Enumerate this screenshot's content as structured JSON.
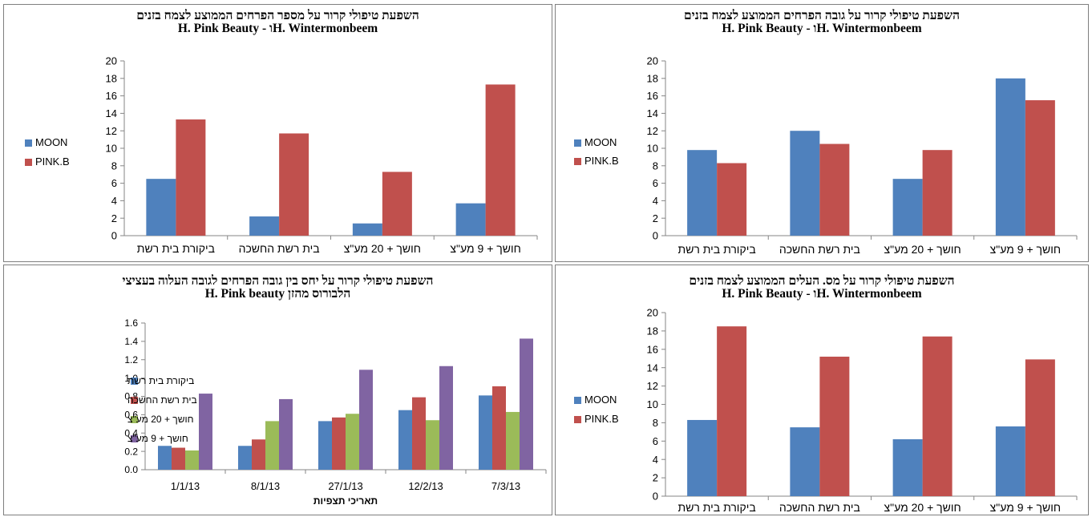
{
  "colors": {
    "moon": "#4f81bd",
    "pink": "#c0504d",
    "green": "#9bbb59",
    "purple": "#8064a2",
    "axis": "#868686"
  },
  "chart_data": [
    {
      "id": "c1",
      "type": "bar",
      "title_line1": "השפעת טיפולי קרור על מספר הפרחים הממוצע לצמח בזנים",
      "title_line2": "H. Pink Beauty - וH. Wintermonbeem",
      "categories": [
        "ביקורת בית רשת",
        "בית רשת החשכה",
        "חושך + 20 מע\"צ",
        "חושך + 9 מע\"צ"
      ],
      "series": [
        {
          "name": "MOON",
          "color_key": "moon",
          "values": [
            6.5,
            2.2,
            1.4,
            3.7
          ]
        },
        {
          "name": "PINK.B",
          "color_key": "pink",
          "values": [
            13.3,
            11.7,
            7.3,
            17.3
          ]
        }
      ],
      "ylim": [
        0,
        20
      ],
      "ystep": 2,
      "decimals": 0,
      "legend_position": "left",
      "grid": false
    },
    {
      "id": "c2",
      "type": "bar",
      "title_line1": "השפעת טיפולי קרור על גובה הפרחים הממוצע לצמח בזנים",
      "title_line2": "H. Pink Beauty - וH. Wintermonbeem",
      "categories": [
        "ביקורת בית רשת",
        "בית רשת החשכה",
        "חושך + 20 מע\"צ",
        "חושך + 9 מע\"צ"
      ],
      "series": [
        {
          "name": "MOON",
          "color_key": "moon",
          "values": [
            9.8,
            12.0,
            6.5,
            18.0
          ]
        },
        {
          "name": "PINK.B",
          "color_key": "pink",
          "values": [
            8.3,
            10.5,
            9.8,
            15.5
          ]
        }
      ],
      "ylim": [
        0,
        20
      ],
      "ystep": 2,
      "decimals": 0,
      "legend_position": "left",
      "grid": false
    },
    {
      "id": "c3",
      "type": "bar",
      "title_line1": "השפעת טיפולי קרור על יחס בין גובה הפרחים לגובה העלוה בעציצי",
      "title_line2": "הלבורוס מהזן H. Pink beauty",
      "categories": [
        "1/1/13",
        "8/1/13",
        "27/1/13",
        "12/2/13",
        "7/3/13"
      ],
      "xlabel": "תאריכי תצפיות",
      "series": [
        {
          "name": "ביקורת בית רשת",
          "color_key": "moon",
          "values": [
            0.26,
            0.26,
            0.53,
            0.65,
            0.81
          ]
        },
        {
          "name": "בית רשת החשכה",
          "color_key": "pink",
          "values": [
            0.24,
            0.33,
            0.57,
            0.79,
            0.91
          ]
        },
        {
          "name": "חושך + 20 מע\"צ",
          "color_key": "green",
          "values": [
            0.21,
            0.53,
            0.61,
            0.54,
            0.63
          ]
        },
        {
          "name": "חושך + 9 מע\"צ",
          "color_key": "purple",
          "values": [
            0.83,
            0.77,
            1.09,
            1.13,
            1.43
          ]
        }
      ],
      "ylim": [
        0,
        1.6
      ],
      "ystep": 0.2,
      "decimals": 1,
      "legend_position": "left",
      "grid": false
    },
    {
      "id": "c4",
      "type": "bar",
      "title_line1": "השפעת טיפולי קרור על מס. העלים הממוצע לצמח בזנים",
      "title_line2": "H. Pink Beauty - וH. Wintermonbeem",
      "categories": [
        "ביקורת בית רשת",
        "בית רשת החשכה",
        "חושך + 20 מע\"צ",
        "חושך + 9 מע\"צ"
      ],
      "series": [
        {
          "name": "MOON",
          "color_key": "moon",
          "values": [
            8.3,
            7.5,
            6.2,
            7.6
          ]
        },
        {
          "name": "PINK.B",
          "color_key": "pink",
          "values": [
            18.5,
            15.2,
            17.4,
            14.9
          ]
        }
      ],
      "ylim": [
        0,
        20
      ],
      "ystep": 2,
      "decimals": 0,
      "legend_position": "left",
      "grid": false
    }
  ]
}
